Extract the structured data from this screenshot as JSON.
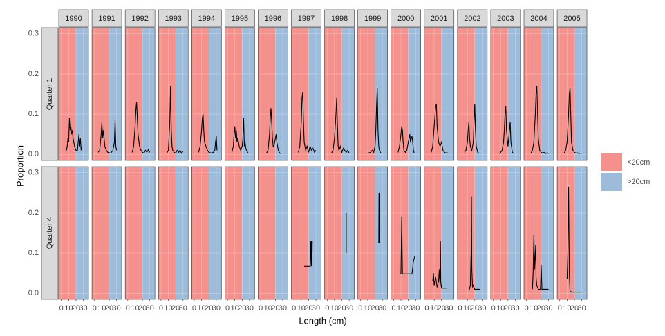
{
  "chart_data": {
    "type": "line",
    "xlabel": "Length (cm)",
    "ylabel": "Proportion",
    "columns": [
      "1990",
      "1991",
      "1992",
      "1993",
      "1994",
      "1995",
      "1996",
      "1997",
      "1998",
      "1999",
      "2000",
      "2001",
      "2002",
      "2003",
      "2004",
      "2005"
    ],
    "rows": [
      "Quarter 1",
      "Quarter 4"
    ],
    "xlim": [
      -3.5,
      37
    ],
    "xticks": [
      0,
      10,
      20,
      30
    ],
    "ylim": [
      -0.015,
      0.315
    ],
    "yticks": [
      {
        "value": 0,
        "label": "0.0"
      },
      0.1,
      0.2,
      0.3
    ],
    "split": 20,
    "line_color": "#000000",
    "grid": true,
    "legend": [
      {
        "name": "<20cm",
        "color": "#f4918c"
      },
      {
        "name": ">20cm",
        "color": "#9dbcdb"
      }
    ],
    "panels": [
      [
        {
          "x": [
            7,
            8,
            9,
            10,
            11,
            12,
            13,
            14,
            15,
            16,
            17,
            18,
            20,
            22,
            24,
            25,
            26,
            27,
            28
          ],
          "y": [
            0.01,
            0.02,
            0.04,
            0.03,
            0.09,
            0.06,
            0.07,
            0.05,
            0.06,
            0.04,
            0.03,
            0.02,
            0.01,
            0.01,
            0.05,
            0.02,
            0.04,
            0.01,
            0.02
          ]
        },
        {
          "x": [
            5,
            7,
            9,
            10,
            11,
            12,
            14,
            16,
            18,
            22,
            25,
            27,
            28,
            29,
            30
          ],
          "y": [
            0.005,
            0.01,
            0.05,
            0.08,
            0.04,
            0.06,
            0.02,
            0.01,
            0.005,
            0.003,
            0.01,
            0.03,
            0.085,
            0.02,
            0.01
          ]
        },
        {
          "x": [
            6,
            8,
            10,
            11,
            12,
            13,
            14,
            16,
            18,
            20,
            22,
            24,
            26,
            28,
            30
          ],
          "y": [
            0.005,
            0.02,
            0.07,
            0.11,
            0.13,
            0.09,
            0.05,
            0.02,
            0.01,
            0.005,
            0.003,
            0.01,
            0.005,
            0.012,
            0.005
          ]
        },
        {
          "x": [
            8,
            10,
            12,
            13,
            14,
            15,
            16,
            18,
            20,
            22,
            24,
            26,
            28,
            30
          ],
          "y": [
            0.003,
            0.01,
            0.08,
            0.17,
            0.06,
            0.02,
            0.01,
            0.005,
            0.003,
            0.01,
            0.005,
            0.01,
            0.003,
            0.008
          ]
        },
        {
          "x": [
            6,
            8,
            10,
            11,
            12,
            13,
            14,
            16,
            18,
            20,
            24,
            26,
            28,
            29,
            30,
            31
          ],
          "y": [
            0.005,
            0.02,
            0.06,
            0.09,
            0.1,
            0.06,
            0.03,
            0.02,
            0.01,
            0.005,
            0.003,
            0.005,
            0.01,
            0.03,
            0.045,
            0.01
          ]
        },
        {
          "x": [
            6,
            8,
            9,
            10,
            11,
            12,
            13,
            14,
            16,
            18,
            20,
            21,
            22,
            23,
            24,
            25,
            26,
            28
          ],
          "y": [
            0.005,
            0.02,
            0.05,
            0.07,
            0.04,
            0.06,
            0.03,
            0.04,
            0.02,
            0.01,
            0.02,
            0.04,
            0.09,
            0.02,
            0.03,
            0.015,
            0.01,
            0.003
          ]
        },
        {
          "x": [
            8,
            10,
            12,
            13,
            14,
            15,
            16,
            17,
            18,
            20,
            21,
            22,
            24,
            26,
            28
          ],
          "y": [
            0.003,
            0.01,
            0.05,
            0.09,
            0.115,
            0.08,
            0.04,
            0.02,
            0.02,
            0.04,
            0.05,
            0.03,
            0.01,
            0.003,
            0.002
          ]
        },
        {
          "x": [
            6,
            8,
            10,
            11,
            12,
            13,
            14,
            16,
            18,
            20,
            22,
            24,
            26,
            28,
            30
          ],
          "y": [
            0.005,
            0.02,
            0.08,
            0.14,
            0.155,
            0.08,
            0.03,
            0.01,
            0.02,
            0.005,
            0.02,
            0.01,
            0.015,
            0.005,
            0.01
          ]
        },
        {
          "x": [
            6,
            8,
            10,
            12,
            13,
            14,
            15,
            16,
            18,
            20,
            22,
            24,
            26,
            28,
            30
          ],
          "y": [
            0.003,
            0.01,
            0.04,
            0.1,
            0.14,
            0.07,
            0.02,
            0.01,
            0.02,
            0.005,
            0.015,
            0.01,
            0.005,
            0.01,
            0.003
          ]
        },
        {
          "x": [
            10,
            14,
            16,
            18,
            20,
            21,
            22,
            23,
            24,
            25,
            26,
            28
          ],
          "y": [
            0.003,
            0.005,
            0.01,
            0.005,
            0.02,
            0.06,
            0.12,
            0.165,
            0.06,
            0.02,
            0.01,
            0.003
          ]
        },
        {
          "x": [
            6,
            8,
            10,
            11,
            12,
            13,
            14,
            16,
            18,
            20,
            21,
            22,
            23,
            24,
            25,
            26,
            27,
            28
          ],
          "y": [
            0.005,
            0.02,
            0.05,
            0.07,
            0.06,
            0.03,
            0.01,
            0.005,
            0.01,
            0.03,
            0.04,
            0.05,
            0.03,
            0.04,
            0.045,
            0.03,
            0.01,
            0.003
          ]
        },
        {
          "x": [
            6,
            8,
            10,
            12,
            13,
            14,
            16,
            18,
            20,
            22,
            24,
            26,
            28
          ],
          "y": [
            0.005,
            0.02,
            0.07,
            0.12,
            0.125,
            0.07,
            0.03,
            0.02,
            0.03,
            0.01,
            0.005,
            0.003,
            0.005
          ]
        },
        {
          "x": [
            6,
            8,
            10,
            11,
            12,
            13,
            14,
            16,
            18,
            19,
            20,
            21,
            22,
            24,
            26
          ],
          "y": [
            0.005,
            0.01,
            0.03,
            0.06,
            0.08,
            0.04,
            0.02,
            0.01,
            0.03,
            0.08,
            0.125,
            0.06,
            0.02,
            0.005,
            0.002
          ]
        },
        {
          "x": [
            8,
            10,
            12,
            14,
            15,
            16,
            17,
            18,
            20,
            22,
            23,
            24,
            26,
            28
          ],
          "y": [
            0.002,
            0.005,
            0.01,
            0.03,
            0.06,
            0.1,
            0.12,
            0.06,
            0.02,
            0.06,
            0.08,
            0.03,
            0.005,
            0.002
          ]
        },
        {
          "x": [
            6,
            8,
            10,
            12,
            13,
            14,
            15,
            16,
            18,
            20,
            22,
            24,
            26,
            28,
            30
          ],
          "y": [
            0.003,
            0.01,
            0.03,
            0.1,
            0.15,
            0.17,
            0.11,
            0.04,
            0.01,
            0.005,
            0.003,
            0.005,
            0.002,
            0.004,
            0.002
          ]
        },
        {
          "x": [
            6,
            8,
            10,
            12,
            13,
            14,
            15,
            16,
            18,
            20,
            22,
            24,
            26,
            28,
            30
          ],
          "y": [
            0.003,
            0.01,
            0.03,
            0.1,
            0.15,
            0.165,
            0.1,
            0.03,
            0.01,
            0.005,
            0.003,
            0.004,
            0.002,
            0.003,
            0.002
          ]
        }
      ],
      [
        {
          "x": [],
          "y": []
        },
        {
          "x": [],
          "y": []
        },
        {
          "x": [],
          "y": []
        },
        {
          "x": [],
          "y": []
        },
        {
          "x": [],
          "y": []
        },
        {
          "x": [],
          "y": []
        },
        {
          "x": [],
          "y": []
        },
        {
          "x": [
            14,
            22,
            23,
            23.5,
            24,
            24.5,
            25
          ],
          "y": [
            0.067,
            0.067,
            0.13,
            0.067,
            0.13,
            0.067,
            0.13
          ]
        },
        {
          "x": [
            26,
            26
          ],
          "y": [
            0.1,
            0.2
          ]
        },
        {
          "x": [
            25,
            25.3,
            25.6,
            25.9,
            26.2
          ],
          "y": [
            0.125,
            0.25,
            0.125,
            0.25,
            0.125
          ]
        },
        {
          "x": [
            9,
            10,
            11,
            12,
            25,
            27,
            29
          ],
          "y": [
            0.048,
            0.048,
            0.19,
            0.048,
            0.048,
            0.08,
            0.093
          ]
        },
        {
          "x": [
            8,
            9,
            10,
            12,
            14,
            16,
            17,
            18,
            18.5,
            19,
            20,
            22,
            28
          ],
          "y": [
            0.03,
            0.05,
            0.02,
            0.04,
            0.015,
            0.03,
            0.06,
            0.02,
            0.13,
            0.03,
            0.013,
            0.013,
            0.013
          ]
        },
        {
          "x": [
            12,
            14,
            15,
            15.5,
            16,
            17,
            18,
            20,
            27
          ],
          "y": [
            0.005,
            0.02,
            0.1,
            0.24,
            0.06,
            0.015,
            0.02,
            0.01,
            0.01
          ]
        },
        {
          "x": [],
          "y": []
        },
        {
          "x": [
            8,
            9,
            10,
            11,
            12.5,
            13,
            14,
            16,
            18,
            19,
            20,
            21,
            22,
            30
          ],
          "y": [
            0.01,
            0.05,
            0.145,
            0.06,
            0.12,
            0.04,
            0.02,
            0.01,
            0.01,
            0.01,
            0.07,
            0.01,
            0.01,
            0.01
          ]
        },
        {
          "x": [
            10,
            11,
            12,
            13,
            14,
            16,
            20,
            30
          ],
          "y": [
            0.035,
            0.1,
            0.265,
            0.05,
            0.005,
            0.003,
            0.003,
            0.003
          ]
        }
      ]
    ]
  }
}
